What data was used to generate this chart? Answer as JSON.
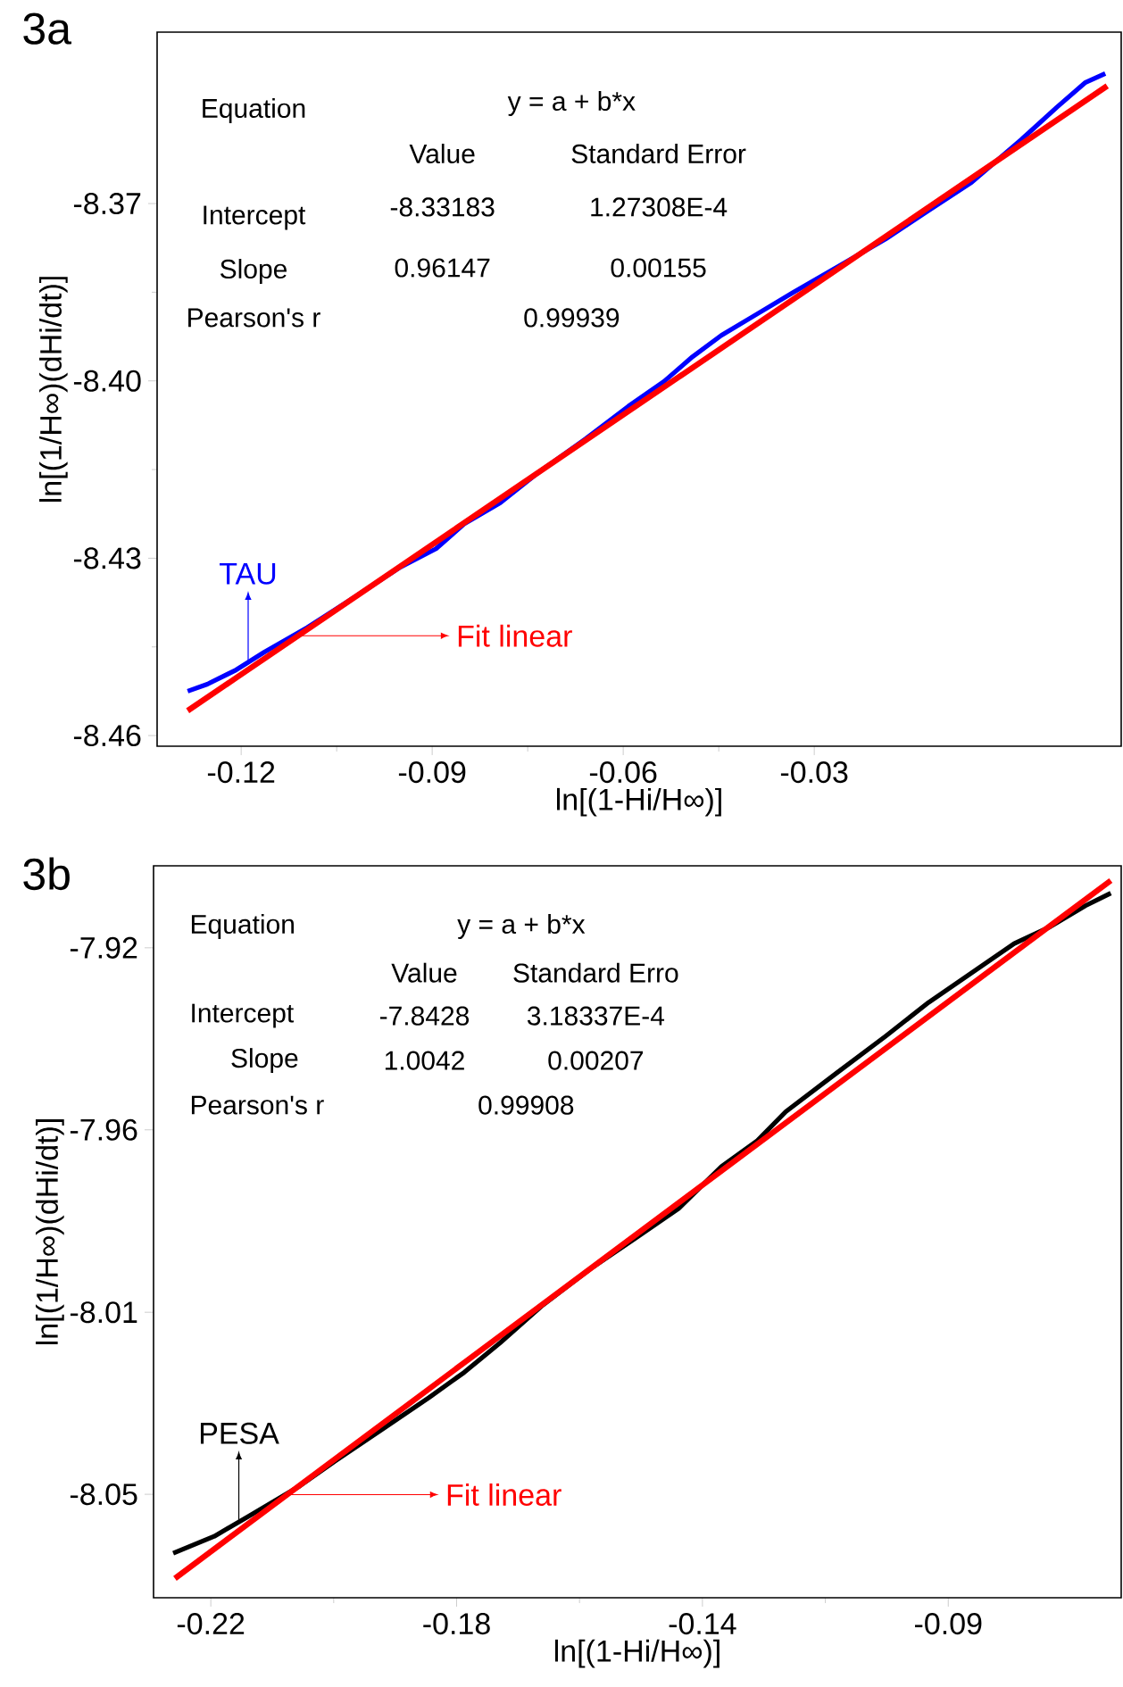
{
  "chart_data": [
    {
      "type": "line",
      "title": "3a",
      "xlabel": "ln[(1-Hi/H∞)]",
      "ylabel": "ln[(1/H∞)(dHi/dt)]",
      "xlim": [
        -0.1332,
        0.0182
      ],
      "ylim": [
        -8.4618,
        -8.341
      ],
      "xticks": [
        -0.12,
        -0.09,
        -0.06,
        -0.03
      ],
      "yticks": [
        -8.46,
        -8.43,
        {
          "value": -8.4,
          "label": "-8.40"
        },
        -8.37
      ],
      "legend": "bottom left",
      "marker": "none",
      "line_style": "solid",
      "series": [
        {
          "name": "TAU",
          "color": "#0000ff",
          "x": [
            -0.1284,
            -0.1253,
            -0.1208,
            -0.1164,
            -0.1096,
            -0.1018,
            -0.095,
            -0.0894,
            -0.085,
            -0.0793,
            -0.0737,
            -0.0659,
            -0.0592,
            -0.0536,
            -0.0491,
            -0.0446,
            -0.039,
            -0.0334,
            -0.0255,
            -0.0188,
            -0.0121,
            -0.0053,
            0.0025,
            0.0081,
            0.0126,
            0.0157
          ],
          "values": [
            -8.4525,
            -8.4513,
            -8.4489,
            -8.4459,
            -8.4417,
            -8.4363,
            -8.4315,
            -8.4284,
            -8.4242,
            -8.4206,
            -8.4158,
            -8.4098,
            -8.4043,
            -8.4001,
            -8.3959,
            -8.3923,
            -8.3887,
            -8.3851,
            -8.3802,
            -8.376,
            -8.3712,
            -8.3664,
            -8.3592,
            -8.3537,
            -8.3495,
            -8.348
          ]
        },
        {
          "name": "Fit linear",
          "color": "#ff0000",
          "x": [
            -0.1284,
            0.016
          ],
          "values": [
            -8.4558,
            -8.3501
          ]
        }
      ],
      "annotations": [
        "Equation",
        "y = a + b*x",
        "Value",
        "Standard Error",
        "Intercept",
        "-8.33183",
        "1.27308E-4",
        "Slope",
        "0.96147",
        "0.00155",
        "Pearson's r",
        "0.99939"
      ]
    },
    {
      "type": "line",
      "title": "3b",
      "xlabel": "ln[(1-Hi/H∞)]",
      "ylabel": "ln[(1/H∞)(dHi/dt)]",
      "xlim": [
        -0.2299,
        -0.0626
      ],
      "ylim": [
        -8.0746,
        -7.9005
      ],
      "xticks": [
        {
          "value": -0.22,
          "label": "-0.22"
        },
        {
          "value": -0.1775,
          "label": "-0.18"
        },
        {
          "value": -0.135,
          "label": "-0.14"
        },
        {
          "value": -0.0925,
          "label": "-0.09"
        }
      ],
      "yticks": [
        {
          "value": -8.05,
          "label": "-8.05"
        },
        {
          "value": -8.0067,
          "label": "-8.01"
        },
        {
          "value": -7.9633,
          "label": "-7.96"
        },
        {
          "value": -7.92,
          "label": "-7.92"
        }
      ],
      "legend": "bottom left",
      "marker": "none",
      "line_style": "solid",
      "series": [
        {
          "name": "PESA",
          "color": "#000000",
          "x": [
            -0.2265,
            -0.2194,
            -0.2132,
            -0.2046,
            -0.1984,
            -0.1898,
            -0.1823,
            -0.1762,
            -0.17,
            -0.1626,
            -0.154,
            -0.1465,
            -0.1391,
            -0.1317,
            -0.1256,
            -0.1206,
            -0.112,
            -0.1033,
            -0.0959,
            -0.0885,
            -0.0811,
            -0.0749,
            -0.0688,
            -0.0644
          ],
          "values": [
            -8.064,
            -8.06,
            -8.055,
            -8.048,
            -8.042,
            -8.034,
            -8.027,
            -8.021,
            -8.014,
            -8.005,
            -7.996,
            -7.989,
            -7.982,
            -7.972,
            -7.966,
            -7.959,
            -7.95,
            -7.941,
            -7.933,
            -7.926,
            -7.919,
            -7.915,
            -7.91,
            -7.907
          ]
        },
        {
          "name": "Fit linear",
          "color": "#ff0000",
          "x": [
            -0.2262,
            -0.0644
          ],
          "values": [
            -8.07,
            -7.904
          ]
        }
      ],
      "annotations": [
        "Equation",
        "y = a + b*x",
        "Value",
        "Standard Erro",
        "Intercept",
        "-7.8428",
        "3.18337E-4",
        "Slope",
        "1.0042",
        "0.00207",
        "Pearson's r",
        "0.99908"
      ]
    }
  ]
}
